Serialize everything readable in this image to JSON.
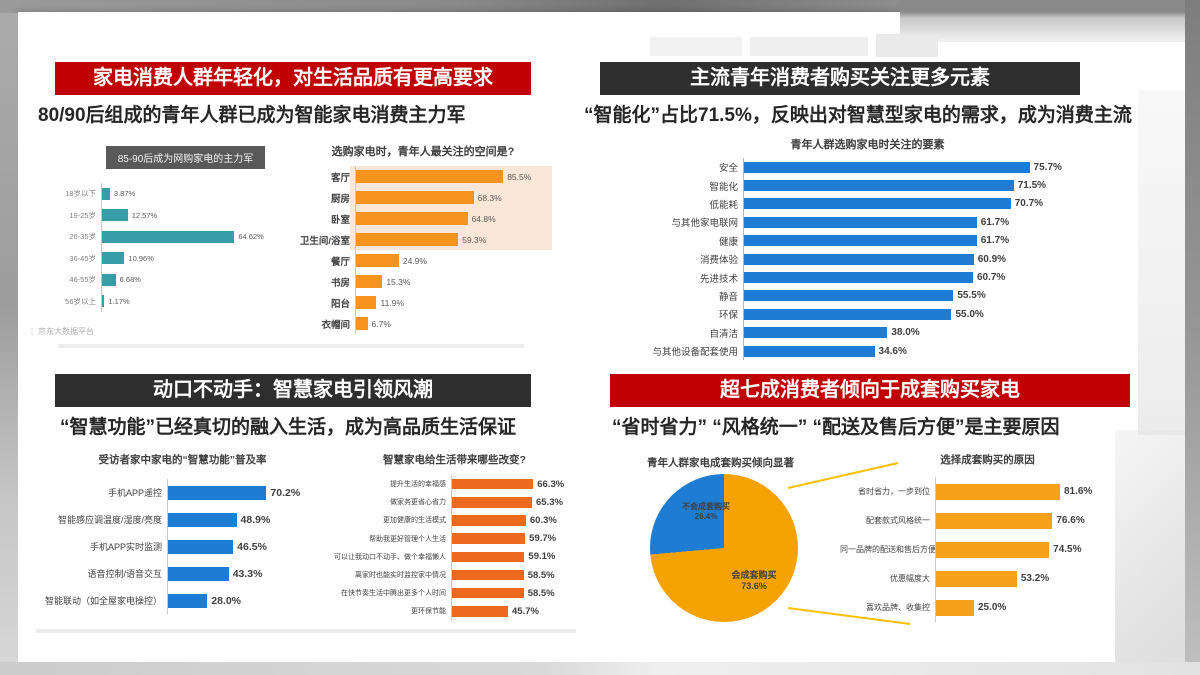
{
  "colors": {
    "red_banner": "#C00000",
    "black_banner": "#2E2E2E",
    "teal": "#379DA9",
    "orange": "#F7941E",
    "blue": "#1F7CD5",
    "deep_orange": "#EC6A1E",
    "golden": "#F7A11A",
    "pie_orange": "#F6A301",
    "pie_blue": "#1E7CD2",
    "callout_yellow": "#FFC000",
    "highlight_peach": "#FBE7D8"
  },
  "q1": {
    "banner": "家电消费人群年轻化，对生活品质有更高要求",
    "subtitle": "80/90后组成的青年人群已成为智能家电消费主力军",
    "source_note": "：京东大数据平台"
  },
  "q2": {
    "banner": "主流青年消费者购买关注更多元素",
    "subtitle": "“智能化”占比71.5%，反映出对智慧型家电的需求，成为消费主流"
  },
  "q3": {
    "banner": "动口不动手：智慧家电引领风潮",
    "subtitle": "“智慧功能”已经真切的融入生活，成为高品质生活保证"
  },
  "q4": {
    "banner": "超七成消费者倾向于成套购买家电",
    "subtitle": "“省时省力” “风格统一” “配送及售后方便”是主要原因"
  },
  "chart_data": [
    {
      "id": "q1_age",
      "type": "bar",
      "orientation": "horizontal",
      "title": "85-90后成为网购家电的主力军",
      "categories": [
        "18岁以下",
        "19-25岁",
        "26-35岁",
        "36-45岁",
        "46-55岁",
        "56岁以上"
      ],
      "values": [
        3.87,
        12.57,
        64.62,
        10.96,
        6.68,
        1.17
      ],
      "labels": [
        "3.87%",
        "12.57%",
        "64.62%",
        "10.96%",
        "6.68%",
        "1.17%"
      ],
      "color": "#379DA9",
      "xlim": [
        0,
        70
      ],
      "scale_max": 103,
      "legend": "none",
      "grid": false
    },
    {
      "id": "q1_space",
      "type": "bar",
      "orientation": "horizontal",
      "title": "选购家电时，青年人最关注的空间是?",
      "categories": [
        "客厅",
        "厨房",
        "卧室",
        "卫生间/浴室",
        "餐厅",
        "书房",
        "阳台",
        "衣帽间"
      ],
      "values": [
        85.5,
        68.3,
        64.8,
        59.3,
        24.9,
        15.3,
        11.9,
        6.7
      ],
      "labels": [
        "85.5%",
        "68.3%",
        "64.8%",
        "59.3%",
        "24.9%",
        "15.3%",
        "11.9%",
        "6.7%"
      ],
      "color": "#F7941E",
      "xlim": [
        0,
        100
      ],
      "scale_max": 115,
      "highlight_top_rows": 4,
      "legend": "none",
      "grid": false
    },
    {
      "id": "q2_factors",
      "type": "bar",
      "orientation": "horizontal",
      "title": "青年人群选购家电时关注的要素",
      "categories": [
        "安全",
        "智能化",
        "低能耗",
        "与其他家电联网",
        "健康",
        "消费体验",
        "先进技术",
        "静音",
        "环保",
        "自清洁",
        "与其他设备配套使用"
      ],
      "values": [
        75.7,
        71.5,
        70.7,
        61.7,
        61.7,
        60.9,
        60.7,
        55.5,
        55.0,
        38.0,
        34.6
      ],
      "labels": [
        "75.7%",
        "71.5%",
        "70.7%",
        "61.7%",
        "61.7%",
        "60.9%",
        "60.7%",
        "55.5%",
        "55.0%",
        "38.0%",
        "34.6%"
      ],
      "color": "#1F7CD5",
      "xlim": [
        0,
        100
      ],
      "scale_max": 101,
      "legend": "none",
      "grid": false
    },
    {
      "id": "q3_smart",
      "type": "bar",
      "orientation": "horizontal",
      "title": "受访者家中家电的“智慧功能”普及率",
      "categories": [
        "手机APP遥控",
        "智能感应调温度/湿度/亮度",
        "手机APP实时监测",
        "语音控制/语音交互",
        "智能联动（如全屋家电操控）"
      ],
      "values": [
        70.2,
        48.9,
        46.5,
        43.3,
        28.0
      ],
      "labels": [
        "70.2%",
        "48.9%",
        "46.5%",
        "43.3%",
        "28.0%"
      ],
      "color": "#1F7CD5",
      "xlim": [
        0,
        90
      ],
      "scale_max": 112,
      "legend": "none",
      "grid": false
    },
    {
      "id": "q3_changes",
      "type": "bar",
      "orientation": "horizontal",
      "title": "智慧家电给生活带来哪些改变?",
      "categories": [
        "提升生活的幸福感",
        "做家务更省心省力",
        "更加健康的生活模式",
        "帮助我更好管理个人生活",
        "可以让我动口不动手、做个幸福懒人",
        "离家时也能实时监控家中情况",
        "在快节奏生活中腾出更多个人时间",
        "更环保节能"
      ],
      "values": [
        66.3,
        65.3,
        60.3,
        59.7,
        59.1,
        58.5,
        58.5,
        45.7
      ],
      "labels": [
        "66.3%",
        "65.3%",
        "60.3%",
        "59.7%",
        "59.1%",
        "58.5%",
        "58.5%",
        "45.7%"
      ],
      "color": "#EC6A1E",
      "xlim": [
        0,
        75
      ],
      "scale_max": 102,
      "legend": "none",
      "grid": false
    },
    {
      "id": "q4_pie",
      "type": "pie",
      "title": "青年人群家电成套购买倾向显著",
      "slices": [
        {
          "label": "会成套购买",
          "pct_label": "73.6%",
          "value": 73.6,
          "color": "#F6A301"
        },
        {
          "label": "不会成套购买",
          "pct_label": "26.4%",
          "value": 26.4,
          "color": "#1E7CD2"
        }
      ],
      "legend": "none"
    },
    {
      "id": "q4_reasons",
      "type": "bar",
      "orientation": "horizontal",
      "title": "选择成套购买的原因",
      "categories": [
        "省时省力，一步到位",
        "配套款式风格统一",
        "同一品牌的配送和售后方便",
        "优惠幅度大",
        "喜欢品牌、收集控"
      ],
      "values": [
        81.6,
        76.6,
        74.5,
        53.2,
        25.0
      ],
      "labels": [
        "81.6%",
        "76.6%",
        "74.5%",
        "53.2%",
        "25.0%"
      ],
      "color": "#F7A11A",
      "xlim": [
        0,
        100
      ],
      "scale_max": 131,
      "legend": "none",
      "grid": false
    }
  ]
}
